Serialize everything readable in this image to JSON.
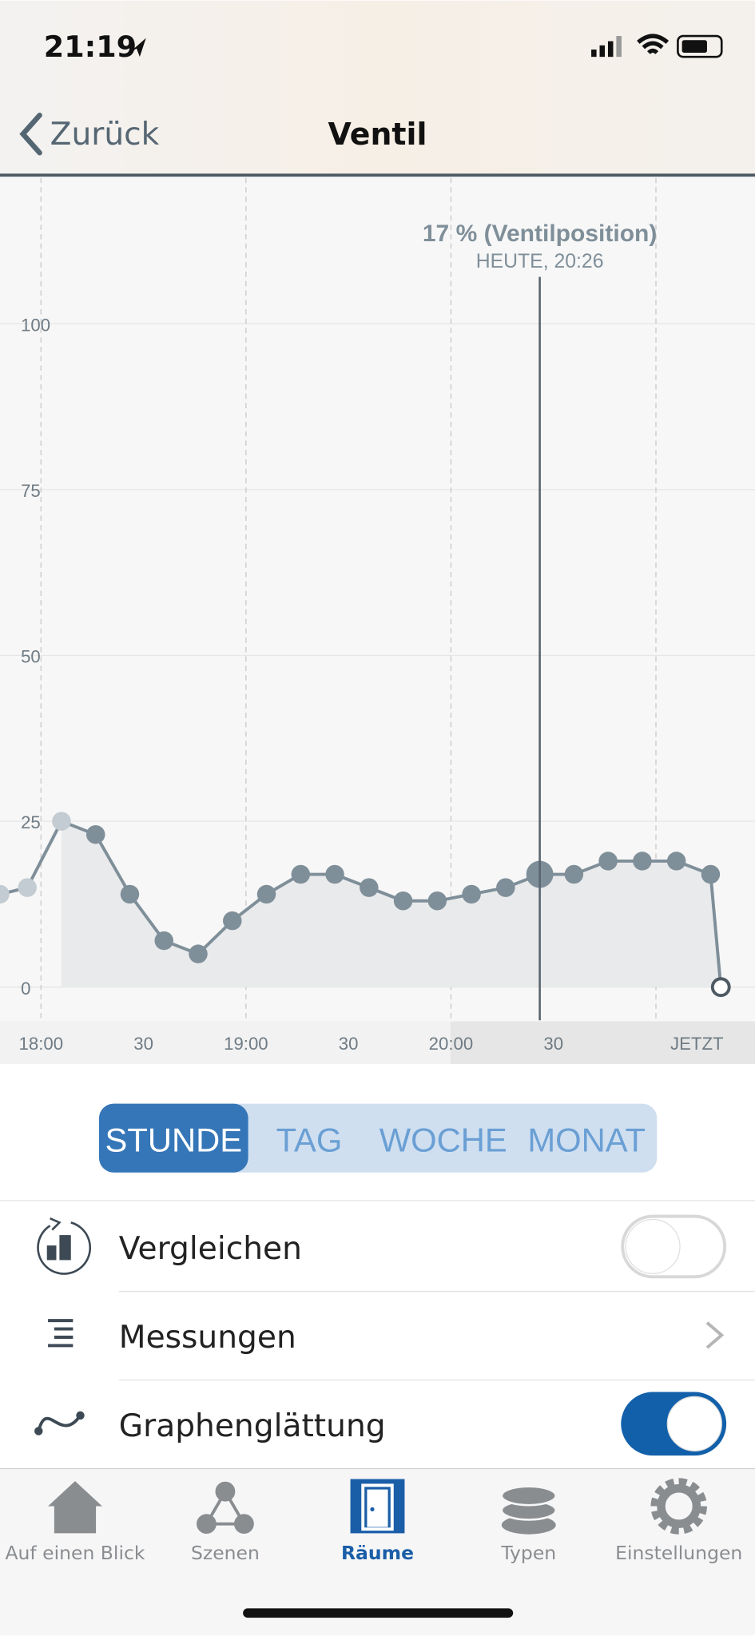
{
  "status_bar": {
    "time": "21:19"
  },
  "nav": {
    "back": "Zurück",
    "title": "Ventil"
  },
  "chart_data": {
    "type": "line",
    "x": [
      -12,
      -4,
      6,
      16,
      26,
      36,
      46,
      56,
      66,
      76,
      86,
      96,
      106,
      116,
      126,
      136,
      146,
      156,
      166,
      176,
      186,
      196,
      199
    ],
    "series": [
      {
        "color": "#7f8f99",
        "values": [
          14,
          15,
          25,
          23,
          14,
          7,
          5,
          10,
          14,
          17,
          17,
          15,
          13,
          13,
          14,
          15,
          17,
          17,
          19,
          19,
          19,
          17,
          0
        ]
      }
    ],
    "xlim": [
      -12,
      209
    ],
    "xticks": [
      {
        "value": 0,
        "label": "18:00"
      },
      {
        "value": 30,
        "label": "30"
      },
      {
        "value": 60,
        "label": "19:00"
      },
      {
        "value": 90,
        "label": "30"
      },
      {
        "value": 120,
        "label": "20:00"
      },
      {
        "value": 150,
        "label": "30"
      },
      {
        "value": 192,
        "label": "JETZT"
      }
    ],
    "xgrid": [
      0,
      60,
      120,
      180
    ],
    "ylim": [
      -5,
      122
    ],
    "yticks": [
      0,
      25,
      50,
      75,
      100
    ],
    "grid": true,
    "annotation": {
      "x": 146,
      "text": "17 % (Ventilposition)",
      "subtext": "HEUTE, 20:26"
    }
  },
  "segments": {
    "items": [
      "STUNDE",
      "TAG",
      "WOCHE",
      "MONAT"
    ],
    "selected": 0
  },
  "list": [
    {
      "label": "Vergleichen",
      "toggle": false
    },
    {
      "label": "Messungen"
    },
    {
      "label": "Graphenglättung",
      "toggle": true
    }
  ],
  "tabs": {
    "items": [
      "Auf einen Blick",
      "Szenen",
      "Räume",
      "Typen",
      "Einstellungen"
    ],
    "active": 2
  }
}
